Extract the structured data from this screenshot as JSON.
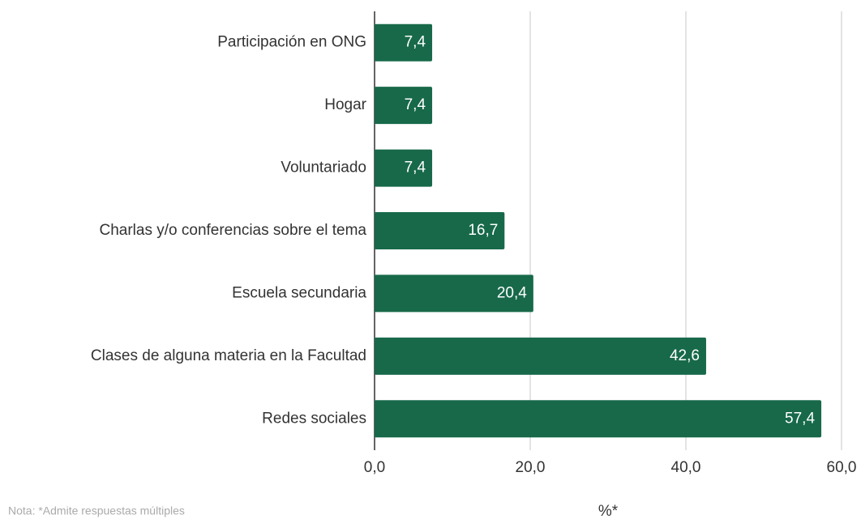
{
  "chart_data": {
    "type": "hbar",
    "categories": [
      "Participación en ONG",
      "Hogar",
      "Voluntariado",
      "Charlas y/o conferencias sobre el tema",
      "Escuela secundaria",
      "Clases de alguna materia en la Facultad",
      "Redes sociales"
    ],
    "values": [
      7.4,
      7.4,
      7.4,
      16.7,
      20.4,
      42.6,
      57.4
    ],
    "value_labels": [
      "7,4",
      "7,4",
      "7,4",
      "16,7",
      "20,4",
      "42,6",
      "57,4"
    ],
    "color": "#17694a",
    "xlim": [
      0,
      60
    ],
    "xticks": [
      {
        "value": 0,
        "label": "0,0"
      },
      {
        "value": 20,
        "label": "20,0"
      },
      {
        "value": 40,
        "label": "40,0"
      },
      {
        "value": 60,
        "label": "60,0"
      }
    ],
    "xlabel": "%*",
    "note": "Nota: *Admite respuestas múltiples",
    "grid": true
  }
}
